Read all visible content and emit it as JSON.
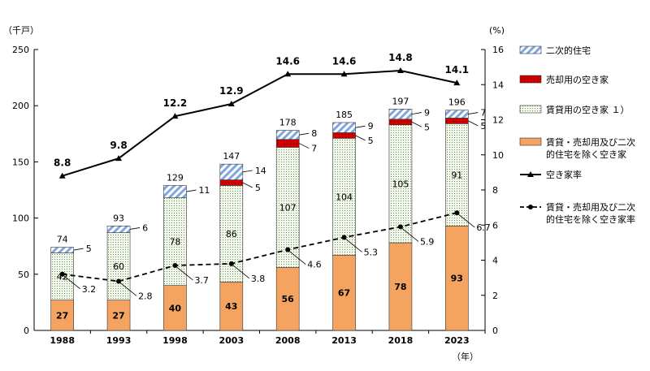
{
  "chart_data": {
    "type": "bar",
    "subtype": "stacked-bar-with-lines",
    "categories": [
      "1988",
      "1993",
      "1998",
      "2003",
      "2008",
      "2013",
      "2018",
      "2023"
    ],
    "y_left": {
      "unit": "（千戸）",
      "range": [
        0,
        250
      ],
      "ticks": [
        "0",
        "50",
        "100",
        "150",
        "200",
        "250"
      ]
    },
    "y_right": {
      "unit": "(%)",
      "range": [
        0,
        16
      ],
      "ticks": [
        "0",
        "2",
        "4",
        "6",
        "8",
        "10",
        "12",
        "14",
        "16"
      ]
    },
    "x_unit": "（年）",
    "series": [
      {
        "name": "賃貸・売却用及び二次的住宅を除く空き家",
        "name_lines": [
          "賃貸・売却用及び二次",
          "的住宅を除く空き家"
        ],
        "color": "#f4a460",
        "values": [
          27,
          27,
          40,
          43,
          56,
          67,
          78,
          93
        ]
      },
      {
        "name": "賃貸用の空き家 １）",
        "color": "#e8f2dc",
        "values": [
          42,
          60,
          78,
          86,
          107,
          104,
          105,
          91
        ]
      },
      {
        "name": "売却用の空き家",
        "color": "#cc0000",
        "values": [
          null,
          null,
          null,
          5,
          7,
          5,
          5,
          5
        ],
        "labels": [
          "",
          "",
          "",
          "5",
          "7",
          "5",
          "5",
          "5"
        ]
      },
      {
        "name": "二次的住宅",
        "color": "#a9c4eb",
        "values": [
          5,
          6,
          11,
          14,
          8,
          9,
          9,
          7
        ],
        "labels": [
          "5",
          "6",
          "11",
          "14",
          "8",
          "9",
          "9",
          "7"
        ]
      }
    ],
    "totals": [
      "74",
      "93",
      "129",
      "147",
      "178",
      "185",
      "197",
      "196"
    ],
    "lines": [
      {
        "name": "空き家率",
        "axis": "right",
        "values": [
          8.8,
          9.8,
          12.2,
          12.9,
          14.6,
          14.6,
          14.8,
          14.1
        ],
        "labels": [
          "8.8",
          "9.8",
          "12.2",
          "12.9",
          "14.6",
          "14.6",
          "14.8",
          "14.1"
        ]
      },
      {
        "name": "賃貸・売却用及び二次的住宅を除く空き家率",
        "name_lines": [
          "賃貸・売却用及び二次",
          "的住宅を除く空き家率"
        ],
        "axis": "right",
        "values": [
          3.2,
          2.8,
          3.7,
          3.8,
          4.6,
          5.3,
          5.9,
          6.7
        ],
        "labels": [
          "3.2",
          "2.8",
          "3.7",
          "3.8",
          "4.6",
          "5.3",
          "5.9",
          "6.7"
        ]
      }
    ],
    "legend_position": "right"
  }
}
